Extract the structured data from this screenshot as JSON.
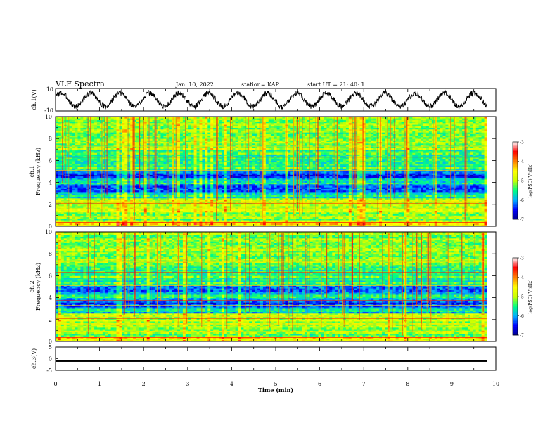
{
  "header": {
    "title": "VLF Spectra",
    "date": "Jan. 10, 2022",
    "station": "station= KAP",
    "start": "start  UT =  21: 40: 1"
  },
  "chart_data": [
    {
      "type": "line",
      "name": "ch1-waveform",
      "ylabel": "ch.1(V)",
      "ylim": [
        -10,
        10
      ],
      "xlim": [
        0,
        10
      ],
      "yticklabels": [
        "10",
        "-10"
      ],
      "period_min": 0.67,
      "amplitude": 6,
      "noise_amp": 1.2,
      "color": "#000000"
    },
    {
      "type": "heatmap",
      "name": "ch1-spectrogram",
      "ylabel_line1": "ch.1",
      "ylabel_line2": "Frequency  (kHz)",
      "ylim": [
        0,
        10
      ],
      "yticks": [
        0,
        2,
        4,
        6,
        8,
        10
      ],
      "xlim": [
        0,
        10
      ],
      "data_extent_min": 9.8,
      "zlabel": "log(PSD)(V²/Hz)",
      "zlim": [
        -7,
        -3
      ],
      "zticks": [
        -7,
        -6,
        -5,
        -4,
        -3
      ],
      "colormap": [
        "#00008f",
        "#0000ff",
        "#00b0ff",
        "#00ff80",
        "#c8ff00",
        "#ffff00",
        "#ff8000",
        "#ff0000",
        "#ffffff"
      ],
      "seed": 7
    },
    {
      "type": "heatmap",
      "name": "ch2-spectrogram",
      "ylabel_line1": "ch.2",
      "ylabel_line2": "Frequency  (kHz)",
      "ylim": [
        0,
        10
      ],
      "yticks": [
        0,
        2,
        4,
        6,
        8,
        10
      ],
      "xlim": [
        0,
        10
      ],
      "data_extent_min": 9.8,
      "zlabel": "log(PSD)(V²/Hz)",
      "zlim": [
        -7,
        -3
      ],
      "zticks": [
        -7,
        -6,
        -5,
        -4,
        -3
      ],
      "colormap": [
        "#00008f",
        "#0000ff",
        "#00b0ff",
        "#00ff80",
        "#c8ff00",
        "#ffff00",
        "#ff8000",
        "#ff0000",
        "#ffffff"
      ],
      "seed": 19
    },
    {
      "type": "line",
      "name": "ch3-waveform",
      "ylabel": "ch.3(V)",
      "ylim": [
        -5,
        5
      ],
      "xlim": [
        0,
        10
      ],
      "yticks": [
        -5,
        0,
        5
      ],
      "level": -1,
      "band": 0.7,
      "color": "#000000"
    }
  ],
  "xaxis": {
    "label": "Time  (min)",
    "ticks": [
      0,
      1,
      2,
      3,
      4,
      5,
      6,
      7,
      8,
      9,
      10
    ]
  }
}
